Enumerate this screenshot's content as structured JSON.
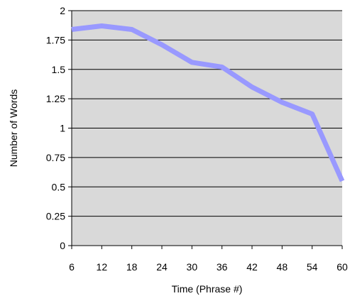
{
  "chart_data": {
    "type": "line",
    "title": "",
    "xlabel": "Time (Phrase #)",
    "ylabel": "Number of Words",
    "x": [
      6,
      12,
      18,
      24,
      30,
      36,
      42,
      48,
      54,
      60
    ],
    "series": [
      {
        "values": [
          1.84,
          1.87,
          1.84,
          1.71,
          1.56,
          1.52,
          1.35,
          1.22,
          1.12,
          0.55
        ]
      }
    ],
    "ylim": [
      0,
      2
    ],
    "yticks": [
      "0",
      "0.25",
      "0.5",
      "0.75",
      "1",
      "1.25",
      "1.5",
      "1.75",
      "2"
    ],
    "xticks": [
      "6",
      "12",
      "18",
      "24",
      "30",
      "36",
      "42",
      "48",
      "54",
      "60"
    ],
    "grid": "horizontal",
    "legend": "none",
    "colors": {
      "plot_background": "#d9d9d9",
      "line": "#9999ff",
      "grid": "#000000",
      "axis": "#000000"
    }
  }
}
